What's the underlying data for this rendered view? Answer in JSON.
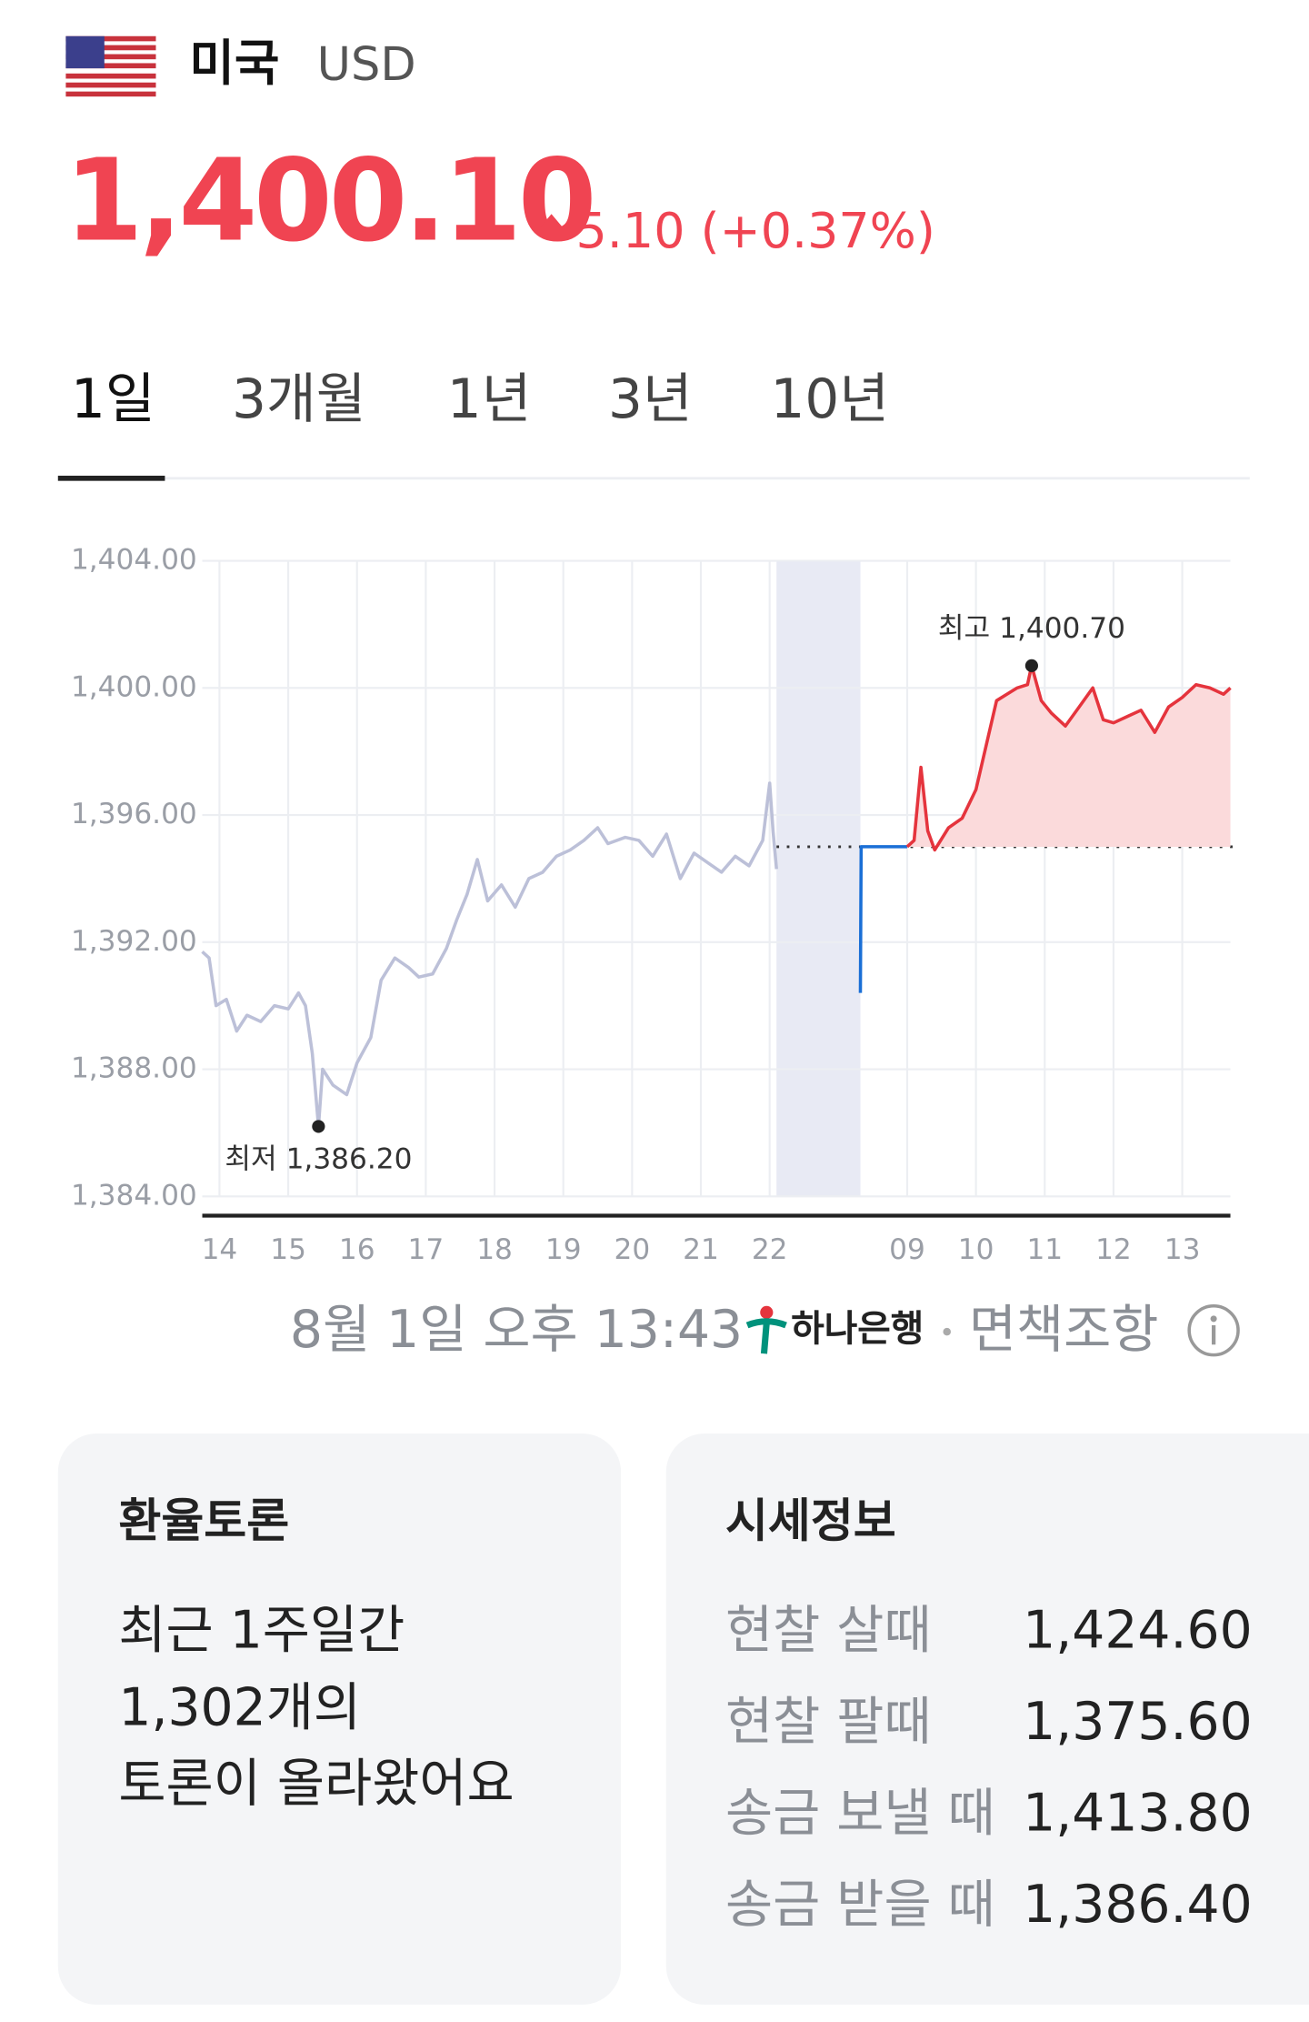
{
  "header": {
    "country": "미국",
    "currency": "USD",
    "price": "1,400.10",
    "change": "5.10 (+0.37%)"
  },
  "tabs": [
    "1일",
    "3개월",
    "1년",
    "3년",
    "10년"
  ],
  "chart_data": {
    "type": "line",
    "xlim": [
      13.75,
      28.7
    ],
    "ylim": [
      1384,
      1404
    ],
    "yticks": [
      {
        "value": 1384,
        "label": "1,384.00"
      },
      {
        "value": 1388,
        "label": "1,388.00"
      },
      {
        "value": 1392,
        "label": "1,392.00"
      },
      {
        "value": 1396,
        "label": "1,396.00"
      },
      {
        "value": 1400,
        "label": "1,400.00"
      },
      {
        "value": 1404,
        "label": "1,404.00"
      }
    ],
    "xticks": [
      14,
      15,
      16,
      17,
      18,
      19,
      20,
      21,
      22,
      {
        "value": 24,
        "label": "09"
      },
      {
        "value": 25,
        "label": "10"
      },
      {
        "value": 26,
        "label": "11"
      },
      {
        "value": 27,
        "label": "12"
      },
      {
        "value": 28,
        "label": "13"
      }
    ],
    "grid": true,
    "night_band": [
      22.1,
      23.32
    ],
    "reference_line": 1395,
    "series": [
      {
        "color": "#bcc0d8",
        "x": [
          13.75,
          13.85,
          13.95,
          14.1,
          14.25,
          14.4,
          14.6,
          14.8,
          15.0,
          15.15,
          15.25,
          15.35,
          15.44,
          15.5,
          15.65,
          15.85,
          16.0,
          16.2,
          16.35,
          16.55,
          16.75,
          16.9,
          17.1,
          17.3,
          17.45,
          17.6,
          17.75,
          17.9,
          18.1,
          18.3,
          18.5,
          18.7,
          18.9,
          19.1,
          19.3,
          19.5,
          19.65,
          19.9,
          20.1,
          20.3,
          20.5,
          20.7,
          20.9,
          21.1,
          21.3,
          21.5,
          21.7,
          21.9,
          22.0,
          22.05,
          22.1
        ],
        "values": [
          1391.7,
          1391.5,
          1390.0,
          1390.2,
          1389.2,
          1389.7,
          1389.5,
          1390.0,
          1389.9,
          1390.4,
          1390.0,
          1388.5,
          1386.2,
          1388.0,
          1387.5,
          1387.2,
          1388.2,
          1389.0,
          1390.8,
          1391.5,
          1391.2,
          1390.9,
          1391.0,
          1391.8,
          1392.7,
          1393.5,
          1394.6,
          1393.3,
          1393.8,
          1393.1,
          1394.0,
          1394.2,
          1394.7,
          1394.9,
          1395.2,
          1395.6,
          1395.1,
          1395.3,
          1395.2,
          1394.7,
          1395.4,
          1394.0,
          1394.8,
          1394.5,
          1394.2,
          1394.7,
          1394.4,
          1395.2,
          1397.0,
          1395.5,
          1394.3
        ]
      },
      {
        "color": "#1a6fd6",
        "x": [
          23.32,
          23.33,
          24.0
        ],
        "values": [
          1390.4,
          1395.0,
          1395.0
        ]
      },
      {
        "color": "#e5343d",
        "fill": "#fbdadb",
        "x": [
          24.0,
          24.1,
          24.2,
          24.3,
          24.4,
          24.6,
          24.8,
          25.0,
          25.15,
          25.3,
          25.45,
          25.6,
          25.75,
          25.81,
          25.95,
          26.1,
          26.3,
          26.5,
          26.7,
          26.85,
          27.0,
          27.2,
          27.4,
          27.6,
          27.8,
          28.0,
          28.2,
          28.4,
          28.6,
          28.7
        ],
        "values": [
          1395.0,
          1395.2,
          1397.5,
          1395.5,
          1394.9,
          1395.6,
          1395.9,
          1396.8,
          1398.2,
          1399.6,
          1399.8,
          1400.0,
          1400.1,
          1400.7,
          1399.6,
          1399.2,
          1398.8,
          1399.4,
          1400.0,
          1399.0,
          1398.9,
          1399.1,
          1399.3,
          1398.6,
          1399.4,
          1399.7,
          1400.1,
          1400.0,
          1399.8,
          1400.0
        ]
      }
    ],
    "annotations": [
      {
        "text": "최고 1,400.70",
        "x": 25.81,
        "y": 1400.7
      },
      {
        "text": "최저 1,386.20",
        "x": 15.44,
        "y": 1386.2
      }
    ]
  },
  "footer": {
    "date": "8월 1일 오후 13:43",
    "bank": "하나은행",
    "disclaimer": "면책조항"
  },
  "discussion": {
    "title": "환율토론",
    "lines": [
      "최근 1주일간",
      "1,302개의",
      "토론이 올라왔어요"
    ]
  },
  "quotes": {
    "title": "시세정보",
    "rows": [
      [
        "현찰 살때",
        "1,424.60"
      ],
      [
        "현찰 팔때",
        "1,375.60"
      ],
      [
        "송금 보낼 때",
        "1,413.80"
      ],
      [
        "송금 받을 때",
        "1,386.40"
      ]
    ]
  }
}
